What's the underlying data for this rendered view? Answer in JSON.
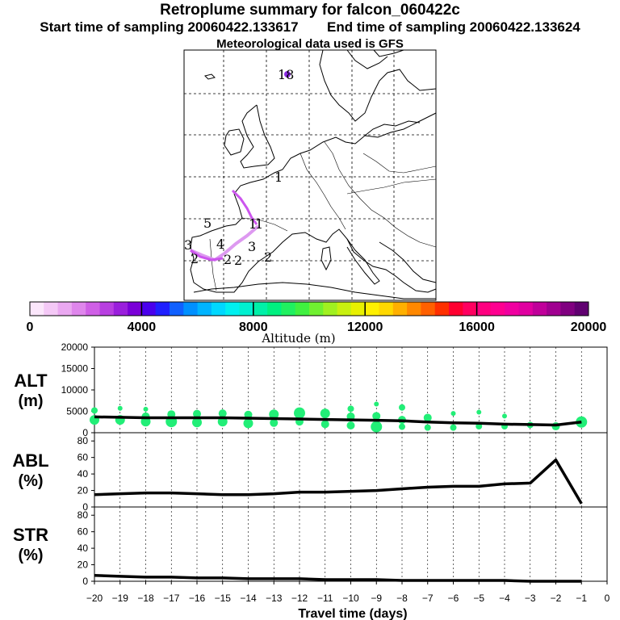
{
  "header": {
    "title": "Retroplume summary for falcon_060422c",
    "start_label": "Start time of sampling 20060422.133617",
    "end_label": "End time of sampling 20060422.133624",
    "met_label": "Meteorological data used is GFS"
  },
  "colors": {
    "plume": "#cc55ee",
    "plume_light": "#dd99f0",
    "release_dot": "#8a2be2",
    "cluster_green": "#22ee77",
    "line": "#000000"
  },
  "map": {
    "labels": [
      "18",
      "1",
      "5",
      "1",
      "1",
      "3",
      "4",
      "3",
      "2",
      "2",
      "2",
      "2"
    ]
  },
  "colorbar": {
    "tick_labels": [
      "0",
      "4000",
      "8000",
      "12000",
      "16000",
      "20000"
    ],
    "title": "Altitude (m)",
    "colors": [
      "#fbe6fb",
      "#f4c8f6",
      "#eaa8f1",
      "#df86ec",
      "#cf5fe6",
      "#b83fe1",
      "#9a1fdc",
      "#7a00d8",
      "#4a00ec",
      "#2020ff",
      "#1060ff",
      "#0090ff",
      "#00b4ff",
      "#00d8ff",
      "#00f0f0",
      "#00f0d0",
      "#00f0a8",
      "#00f080",
      "#20f060",
      "#40f040",
      "#70f030",
      "#a0f020",
      "#c8f010",
      "#e8f000",
      "#fff000",
      "#ffd800",
      "#ffb000",
      "#ff8800",
      "#ff6000",
      "#ff3000",
      "#ff0030",
      "#ff0060",
      "#ff0080",
      "#ff0090",
      "#f000a0",
      "#e000a0",
      "#c0009a",
      "#a00090",
      "#800080",
      "#600070"
    ]
  },
  "chart_data": [
    {
      "type": "line",
      "panel": "ALT",
      "ylabel": "ALT\n(m)",
      "ylabel_line1": "ALT",
      "ylabel_line2": "(m)",
      "ylim": [
        0,
        20000
      ],
      "yticks": [
        0,
        5000,
        10000,
        15000,
        20000
      ],
      "ytick_labels": [
        "0",
        "5000",
        "10000",
        "15000",
        "20000"
      ],
      "x": [
        -20,
        -19,
        -18,
        -17,
        -16,
        -15,
        -14,
        -13,
        -12,
        -11,
        -10,
        -9,
        -8,
        -7,
        -6,
        -5,
        -4,
        -3,
        -2,
        -1
      ],
      "values": [
        3700,
        3600,
        3500,
        3500,
        3500,
        3500,
        3400,
        3300,
        3200,
        3100,
        3000,
        2900,
        2800,
        2500,
        2300,
        2200,
        2000,
        1900,
        1800,
        2500
      ],
      "clusters": [
        {
          "x": -20,
          "alt": 5200,
          "size": 4
        },
        {
          "x": -20,
          "alt": 3000,
          "size": 6
        },
        {
          "x": -19,
          "alt": 5700,
          "size": 3
        },
        {
          "x": -19,
          "alt": 3000,
          "size": 6
        },
        {
          "x": -18,
          "alt": 5500,
          "size": 3
        },
        {
          "x": -18,
          "alt": 3800,
          "size": 5
        },
        {
          "x": -18,
          "alt": 2600,
          "size": 6
        },
        {
          "x": -17,
          "alt": 4300,
          "size": 5
        },
        {
          "x": -17,
          "alt": 2600,
          "size": 7
        },
        {
          "x": -16,
          "alt": 4400,
          "size": 5
        },
        {
          "x": -16,
          "alt": 2400,
          "size": 6
        },
        {
          "x": -15,
          "alt": 4500,
          "size": 5
        },
        {
          "x": -15,
          "alt": 2600,
          "size": 6
        },
        {
          "x": -14,
          "alt": 4200,
          "size": 5
        },
        {
          "x": -14,
          "alt": 2200,
          "size": 6
        },
        {
          "x": -13,
          "alt": 4300,
          "size": 6
        },
        {
          "x": -13,
          "alt": 2300,
          "size": 5
        },
        {
          "x": -12,
          "alt": 4600,
          "size": 7
        },
        {
          "x": -12,
          "alt": 2600,
          "size": 5
        },
        {
          "x": -11,
          "alt": 4500,
          "size": 6
        },
        {
          "x": -11,
          "alt": 2000,
          "size": 5
        },
        {
          "x": -10,
          "alt": 5600,
          "size": 4
        },
        {
          "x": -10,
          "alt": 3800,
          "size": 5
        },
        {
          "x": -10,
          "alt": 1700,
          "size": 5
        },
        {
          "x": -9,
          "alt": 6700,
          "size": 3
        },
        {
          "x": -9,
          "alt": 3900,
          "size": 5
        },
        {
          "x": -9,
          "alt": 1400,
          "size": 7
        },
        {
          "x": -8,
          "alt": 5900,
          "size": 4
        },
        {
          "x": -8,
          "alt": 3000,
          "size": 5
        },
        {
          "x": -8,
          "alt": 1400,
          "size": 4
        },
        {
          "x": -7,
          "alt": 3500,
          "size": 5
        },
        {
          "x": -7,
          "alt": 1200,
          "size": 4
        },
        {
          "x": -6,
          "alt": 4500,
          "size": 3
        },
        {
          "x": -6,
          "alt": 1200,
          "size": 4
        },
        {
          "x": -5,
          "alt": 4800,
          "size": 3
        },
        {
          "x": -5,
          "alt": 1500,
          "size": 4
        },
        {
          "x": -4,
          "alt": 3900,
          "size": 3
        },
        {
          "x": -4,
          "alt": 1500,
          "size": 4
        },
        {
          "x": -3,
          "alt": 1800,
          "size": 4
        },
        {
          "x": -2,
          "alt": 1500,
          "size": 5
        },
        {
          "x": -1,
          "alt": 2500,
          "size": 7
        }
      ]
    },
    {
      "type": "line",
      "panel": "ABL",
      "ylabel_line1": "ABL",
      "ylabel_line2": "(%)",
      "ylim": [
        0,
        90
      ],
      "yticks": [
        0,
        20,
        40,
        60,
        80
      ],
      "ytick_labels": [
        "0",
        "20",
        "40",
        "60",
        "80"
      ],
      "x": [
        -20,
        -19,
        -18,
        -17,
        -16,
        -15,
        -14,
        -13,
        -12,
        -11,
        -10,
        -9,
        -8,
        -7,
        -6,
        -5,
        -4,
        -3,
        -2,
        -1
      ],
      "values": [
        15,
        16,
        17,
        17,
        16,
        15,
        15,
        16,
        18,
        18,
        19,
        20,
        22,
        24,
        25,
        25,
        28,
        29,
        57,
        4
      ]
    },
    {
      "type": "line",
      "panel": "STR",
      "ylabel_line1": "STR",
      "ylabel_line2": "(%)",
      "ylim": [
        0,
        90
      ],
      "yticks": [
        0,
        20,
        40,
        60,
        80
      ],
      "ytick_labels": [
        "0",
        "20",
        "40",
        "60",
        "80"
      ],
      "x": [
        -20,
        -19,
        -18,
        -17,
        -16,
        -15,
        -14,
        -13,
        -12,
        -11,
        -10,
        -9,
        -8,
        -7,
        -6,
        -5,
        -4,
        -3,
        -2,
        -1
      ],
      "values": [
        7,
        6,
        5,
        5,
        4,
        4,
        3,
        3,
        3,
        2,
        2,
        2,
        1,
        1,
        1,
        1,
        1,
        0,
        0,
        0
      ]
    }
  ],
  "xaxis": {
    "ticks": [
      -20,
      -19,
      -18,
      -17,
      -16,
      -15,
      -14,
      -13,
      -12,
      -11,
      -10,
      -9,
      -8,
      -7,
      -6,
      -5,
      -4,
      -3,
      -2,
      -1,
      0
    ],
    "tick_labels": [
      "−20",
      "−19",
      "−18",
      "−17",
      "−16",
      "−15",
      "−14",
      "−13",
      "−12",
      "−11",
      "−10",
      "−9",
      "−8",
      "−7",
      "−6",
      "−5",
      "−4",
      "−3",
      "−2",
      "−1",
      "0"
    ],
    "label": "Travel time (days)",
    "range": [
      -20,
      0
    ]
  }
}
